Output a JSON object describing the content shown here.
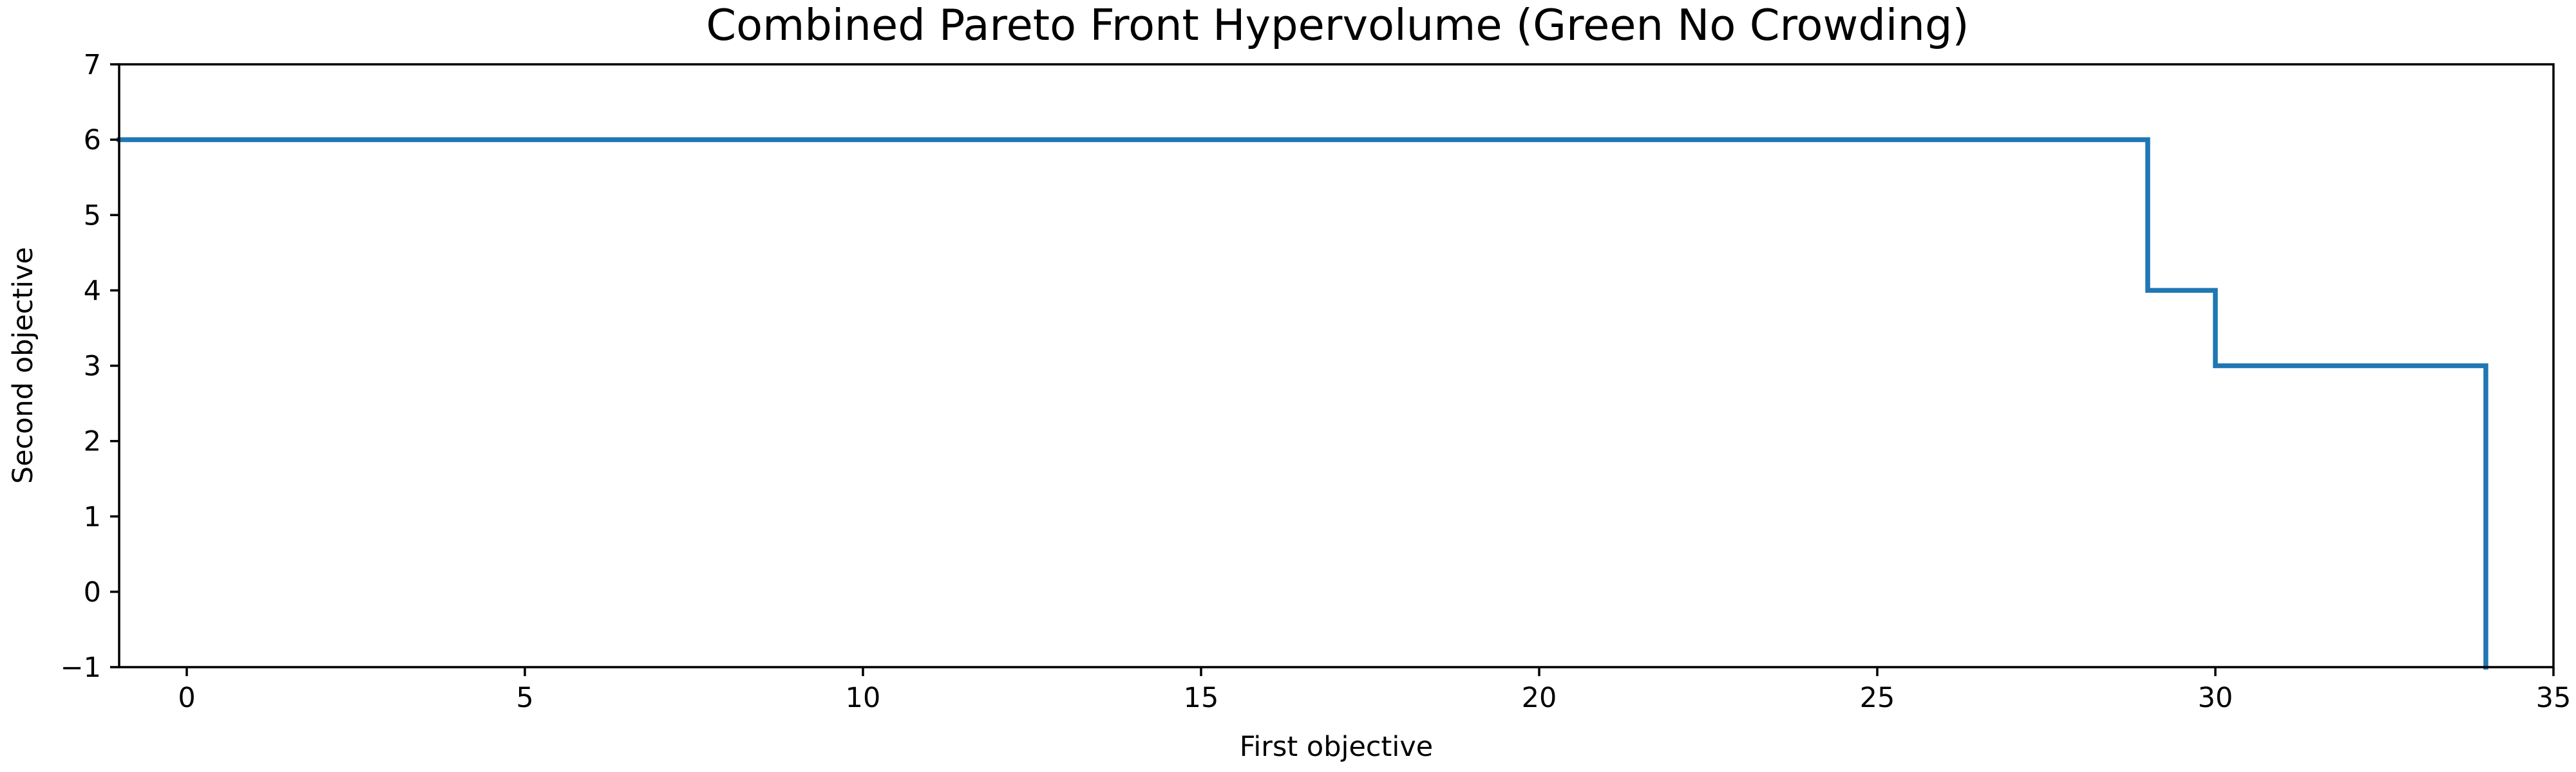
{
  "chart_data": {
    "type": "line",
    "drawstyle": "steps",
    "title": "Combined Pareto Front Hypervolume (Green No Crowding)",
    "xlabel": "First objective",
    "ylabel": "Second objective",
    "xlim": [
      -1,
      35
    ],
    "ylim": [
      -1,
      7
    ],
    "xticks": [
      0,
      5,
      10,
      15,
      20,
      25,
      30,
      35
    ],
    "yticks": [
      -1,
      0,
      1,
      2,
      3,
      4,
      5,
      6,
      7
    ],
    "xtick_labels": [
      "0",
      "5",
      "10",
      "15",
      "20",
      "25",
      "30",
      "35"
    ],
    "ytick_labels": [
      "−1",
      "0",
      "1",
      "2",
      "3",
      "4",
      "5",
      "6",
      "7"
    ],
    "grid": false,
    "series": [
      {
        "color": "#1f77b4",
        "points": [
          [
            -1,
            6
          ],
          [
            29,
            6
          ],
          [
            29,
            4
          ],
          [
            30,
            4
          ],
          [
            30,
            3
          ],
          [
            34,
            3
          ],
          [
            34,
            -1
          ]
        ]
      }
    ]
  }
}
